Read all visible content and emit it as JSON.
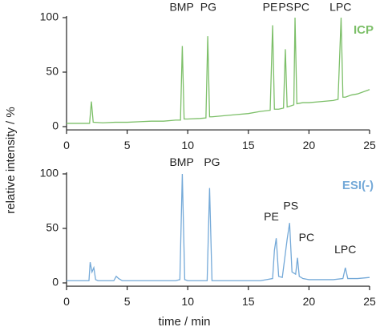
{
  "axis_labels": {
    "x": "time / min",
    "y": "relative intensity / %"
  },
  "chart_data": [
    {
      "type": "line",
      "x": [
        0,
        1,
        1.9,
        2.05,
        2.2,
        3,
        4,
        5,
        6,
        7,
        8,
        9,
        9.4,
        9.55,
        9.7,
        10,
        11,
        11.5,
        11.65,
        11.8,
        12,
        13,
        14,
        15,
        16,
        16.8,
        17.0,
        17.15,
        17.5,
        17.9,
        18.05,
        18.2,
        18.5,
        18.75,
        18.85,
        19.0,
        19.5,
        20,
        21,
        22,
        22.4,
        22.65,
        22.8,
        23,
        23.5,
        24,
        24.5,
        25
      ],
      "series": [
        {
          "name": "ICP",
          "color": "#7cbf68",
          "values": [
            3,
            3,
            3,
            23,
            4,
            3.5,
            4,
            4,
            4.5,
            5,
            5,
            6,
            6,
            74,
            7,
            7,
            7.5,
            8,
            83,
            9,
            9,
            10,
            11,
            12,
            14,
            15,
            93,
            16,
            16,
            17,
            71,
            18,
            19,
            20,
            100,
            21,
            22,
            22,
            23,
            24,
            25,
            100,
            27,
            27,
            29,
            30,
            32,
            34
          ]
        }
      ],
      "xlim": [
        0,
        25
      ],
      "xticks": [
        0,
        5,
        10,
        15,
        20,
        25
      ],
      "ylim": [
        -3,
        100
      ],
      "yticks": [
        0,
        50,
        100
      ],
      "annotations": [
        {
          "text": "BMP",
          "x": 9.5,
          "y": 109
        },
        {
          "text": "PG",
          "x": 11.7,
          "y": 109
        },
        {
          "text": "PE",
          "x": 16.8,
          "y": 109
        },
        {
          "text": "PS",
          "x": 18.1,
          "y": 109
        },
        {
          "text": "PC",
          "x": 19.4,
          "y": 109
        },
        {
          "text": "LPC",
          "x": 22.6,
          "y": 109
        }
      ]
    },
    {
      "type": "line",
      "x": [
        0,
        1,
        1.85,
        1.95,
        2.1,
        2.25,
        2.4,
        2.6,
        3,
        3.9,
        4.1,
        4.3,
        4.6,
        5,
        6,
        7,
        8,
        9,
        9.35,
        9.55,
        9.75,
        10,
        11,
        11.6,
        11.8,
        12,
        13,
        14,
        15,
        16,
        17,
        17.15,
        17.3,
        17.5,
        17.8,
        18.2,
        18.4,
        18.6,
        18.9,
        19.05,
        19.2,
        19.5,
        20,
        21,
        22,
        22.8,
        23,
        23.2,
        24,
        25
      ],
      "series": [
        {
          "name": "ESI(-)",
          "color": "#74a9d8",
          "values": [
            2,
            2,
            2,
            19,
            10,
            14,
            3,
            2,
            2,
            2,
            6,
            4,
            2,
            2,
            2,
            2,
            2,
            2,
            3,
            100,
            3,
            2,
            2,
            2,
            87,
            2,
            2,
            2,
            2,
            2,
            4,
            30,
            41,
            6,
            5,
            40,
            55,
            10,
            8,
            23,
            6,
            4,
            3,
            3,
            3,
            4,
            14,
            4,
            4,
            5
          ]
        }
      ],
      "xlim": [
        0,
        25
      ],
      "xticks": [
        0,
        5,
        10,
        15,
        20,
        25
      ],
      "ylim": [
        -3,
        100
      ],
      "yticks": [
        0,
        50,
        100
      ],
      "annotations": [
        {
          "text": "BMP",
          "x": 9.5,
          "y": 110
        },
        {
          "text": "PG",
          "x": 12,
          "y": 110
        },
        {
          "text": "PE",
          "x": 16.9,
          "y": 60
        },
        {
          "text": "PS",
          "x": 18.5,
          "y": 70
        },
        {
          "text": "PC",
          "x": 19.8,
          "y": 41
        },
        {
          "text": "LPC",
          "x": 23.0,
          "y": 30
        }
      ]
    }
  ]
}
